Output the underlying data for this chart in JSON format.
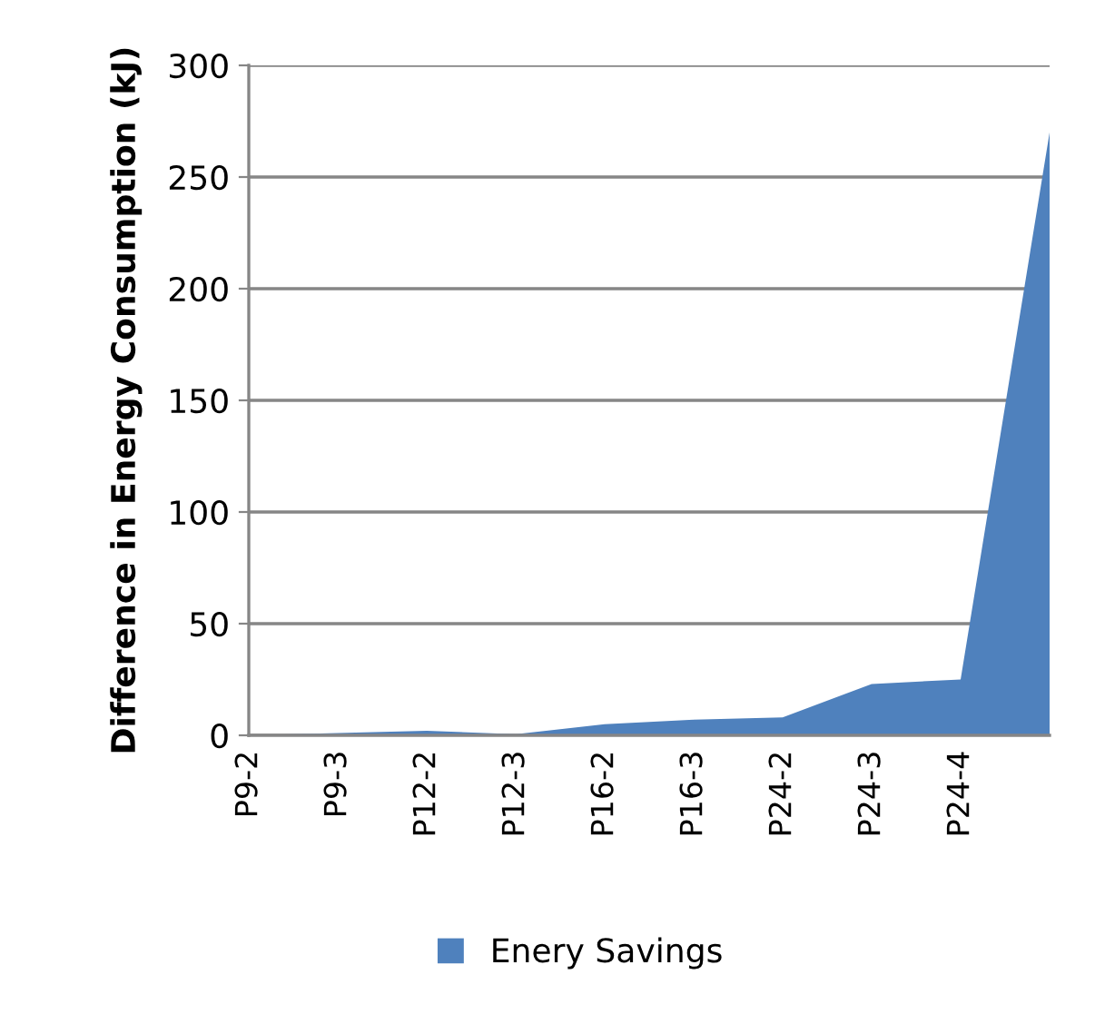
{
  "chart_data": {
    "type": "area",
    "ylabel": "Difference in Energy Consumption (kJ)",
    "categories": [
      "P9-2",
      "P9-3",
      "P12-2",
      "P12-3",
      "P16-2",
      "P16-3",
      "P24-2",
      "P24-3",
      "P24-4",
      null
    ],
    "series": [
      {
        "name": "Enery Savings",
        "color": "#4f81bd",
        "values": [
          0,
          1,
          2,
          0.5,
          5,
          7,
          8,
          23,
          25,
          270
        ]
      }
    ],
    "ylim": [
      0,
      300
    ],
    "yticks": [
      0,
      50,
      100,
      150,
      200,
      250,
      300
    ],
    "grid": "y",
    "legend": "bottom"
  }
}
